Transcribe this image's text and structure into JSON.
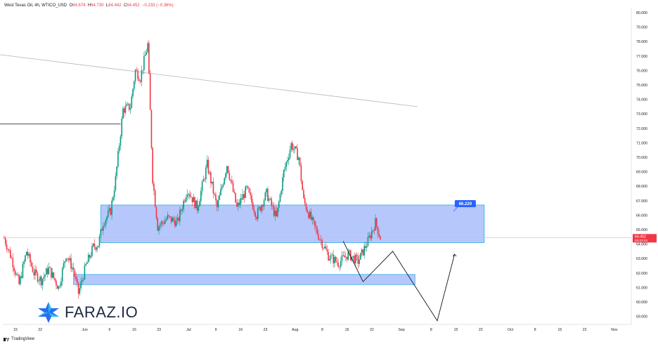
{
  "header": {
    "instrument": "West Texas Oil, 4h, WTICO_USD",
    "ohlc": [
      {
        "label": "O",
        "value": "64.674"
      },
      {
        "label": "H",
        "value": "64.730"
      },
      {
        "label": "L",
        "value": "64.442"
      },
      {
        "label": "C",
        "value": "64.452"
      }
    ],
    "change": "−0.233 (−0.36%)"
  },
  "branding": {
    "logo_text": "FARAZ.IO",
    "platform": "TradingView"
  },
  "colors": {
    "up": "#089981",
    "down": "#f23645",
    "zone_fill": "#a9bdfb",
    "zone_border": "#2db1e8",
    "label_bg": "#2962ff",
    "trendline": "#b2b5be",
    "projection": "#131722",
    "price_line": "#f7a8ae"
  },
  "chart_data": {
    "type": "candlestick",
    "timeframe": "4h",
    "price_axis": {
      "ylim": [
        58.5,
        80.5
      ],
      "ticks": [
        "80.000",
        "79.000",
        "78.000",
        "77.000",
        "76.000",
        "75.000",
        "74.000",
        "73.000",
        "72.000",
        "71.000",
        "70.000",
        "69.000",
        "68.000",
        "67.000",
        "66.000",
        "65.000",
        "64.000",
        "63.000",
        "62.000",
        "61.000",
        "60.000",
        "59.000"
      ]
    },
    "time_axis": {
      "labels": [
        "15",
        "22",
        "Jun",
        "9",
        "16",
        "23",
        "Jul",
        "9",
        "16",
        "23",
        "Aug",
        "8",
        "15",
        "22",
        "Sep",
        "8",
        "15",
        "22",
        "Oct",
        "8",
        "15",
        "22",
        "Nov"
      ]
    },
    "last_price": {
      "value": "64.452",
      "countdown": "03:23:43"
    },
    "zone_label": "66.220",
    "price_path": [
      {
        "d": 0,
        "p": 64.4
      },
      {
        "d": 3,
        "p": 63.0
      },
      {
        "d": 6,
        "p": 61.2
      },
      {
        "d": 9,
        "p": 63.5
      },
      {
        "d": 12,
        "p": 62.0
      },
      {
        "d": 15,
        "p": 61.5
      },
      {
        "d": 18,
        "p": 62.3
      },
      {
        "d": 22,
        "p": 61.0
      },
      {
        "d": 25,
        "p": 63.3
      },
      {
        "d": 28,
        "p": 62.2
      },
      {
        "d": 30,
        "p": 60.6
      },
      {
        "d": 33,
        "p": 62.5
      },
      {
        "d": 36,
        "p": 63.8
      },
      {
        "d": 38,
        "p": 64.0
      },
      {
        "d": 40,
        "p": 65.5
      },
      {
        "d": 43,
        "p": 66.3
      },
      {
        "d": 45,
        "p": 68.5
      },
      {
        "d": 48,
        "p": 73.3
      },
      {
        "d": 51,
        "p": 73.5
      },
      {
        "d": 53,
        "p": 76.0
      },
      {
        "d": 55,
        "p": 75.5
      },
      {
        "d": 58,
        "p": 77.8
      },
      {
        "d": 60,
        "p": 68.5
      },
      {
        "d": 62,
        "p": 65.2
      },
      {
        "d": 66,
        "p": 65.8
      },
      {
        "d": 70,
        "p": 65.5
      },
      {
        "d": 74,
        "p": 67.8
      },
      {
        "d": 78,
        "p": 66.5
      },
      {
        "d": 82,
        "p": 69.5
      },
      {
        "d": 86,
        "p": 66.5
      },
      {
        "d": 90,
        "p": 69.5
      },
      {
        "d": 94,
        "p": 66.5
      },
      {
        "d": 98,
        "p": 67.8
      },
      {
        "d": 102,
        "p": 66.0
      },
      {
        "d": 106,
        "p": 67.5
      },
      {
        "d": 110,
        "p": 65.8
      },
      {
        "d": 113,
        "p": 69.0
      },
      {
        "d": 116,
        "p": 70.9
      },
      {
        "d": 119,
        "p": 70.0
      },
      {
        "d": 121,
        "p": 67.0
      },
      {
        "d": 124,
        "p": 65.7
      },
      {
        "d": 127,
        "p": 64.6
      },
      {
        "d": 131,
        "p": 63.2
      },
      {
        "d": 135,
        "p": 62.7
      },
      {
        "d": 139,
        "p": 63.3
      },
      {
        "d": 143,
        "p": 62.8
      },
      {
        "d": 147,
        "p": 64.2
      },
      {
        "d": 150,
        "p": 65.5
      },
      {
        "d": 152,
        "p": 64.452
      }
    ],
    "annotations": [
      {
        "type": "zone",
        "from_d": 39,
        "to_d": 194,
        "p_low": 64.1,
        "p_high": 66.7
      },
      {
        "type": "zone",
        "from_d": 28,
        "to_d": 166,
        "p_low": 61.2,
        "p_high": 61.9
      },
      {
        "type": "trendline",
        "points": [
          {
            "d": -2,
            "p": 77.1
          },
          {
            "d": 167,
            "p": 73.5
          }
        ]
      },
      {
        "type": "hline",
        "from_d": -2,
        "to_d": 47,
        "p": 72.3
      },
      {
        "type": "path",
        "points": [
          {
            "d": 137,
            "p": 64.2
          },
          {
            "d": 145,
            "p": 61.4
          },
          {
            "d": 157,
            "p": 63.5
          },
          {
            "d": 175,
            "p": 58.7
          },
          {
            "d": 182,
            "p": 63.3
          }
        ]
      }
    ]
  }
}
